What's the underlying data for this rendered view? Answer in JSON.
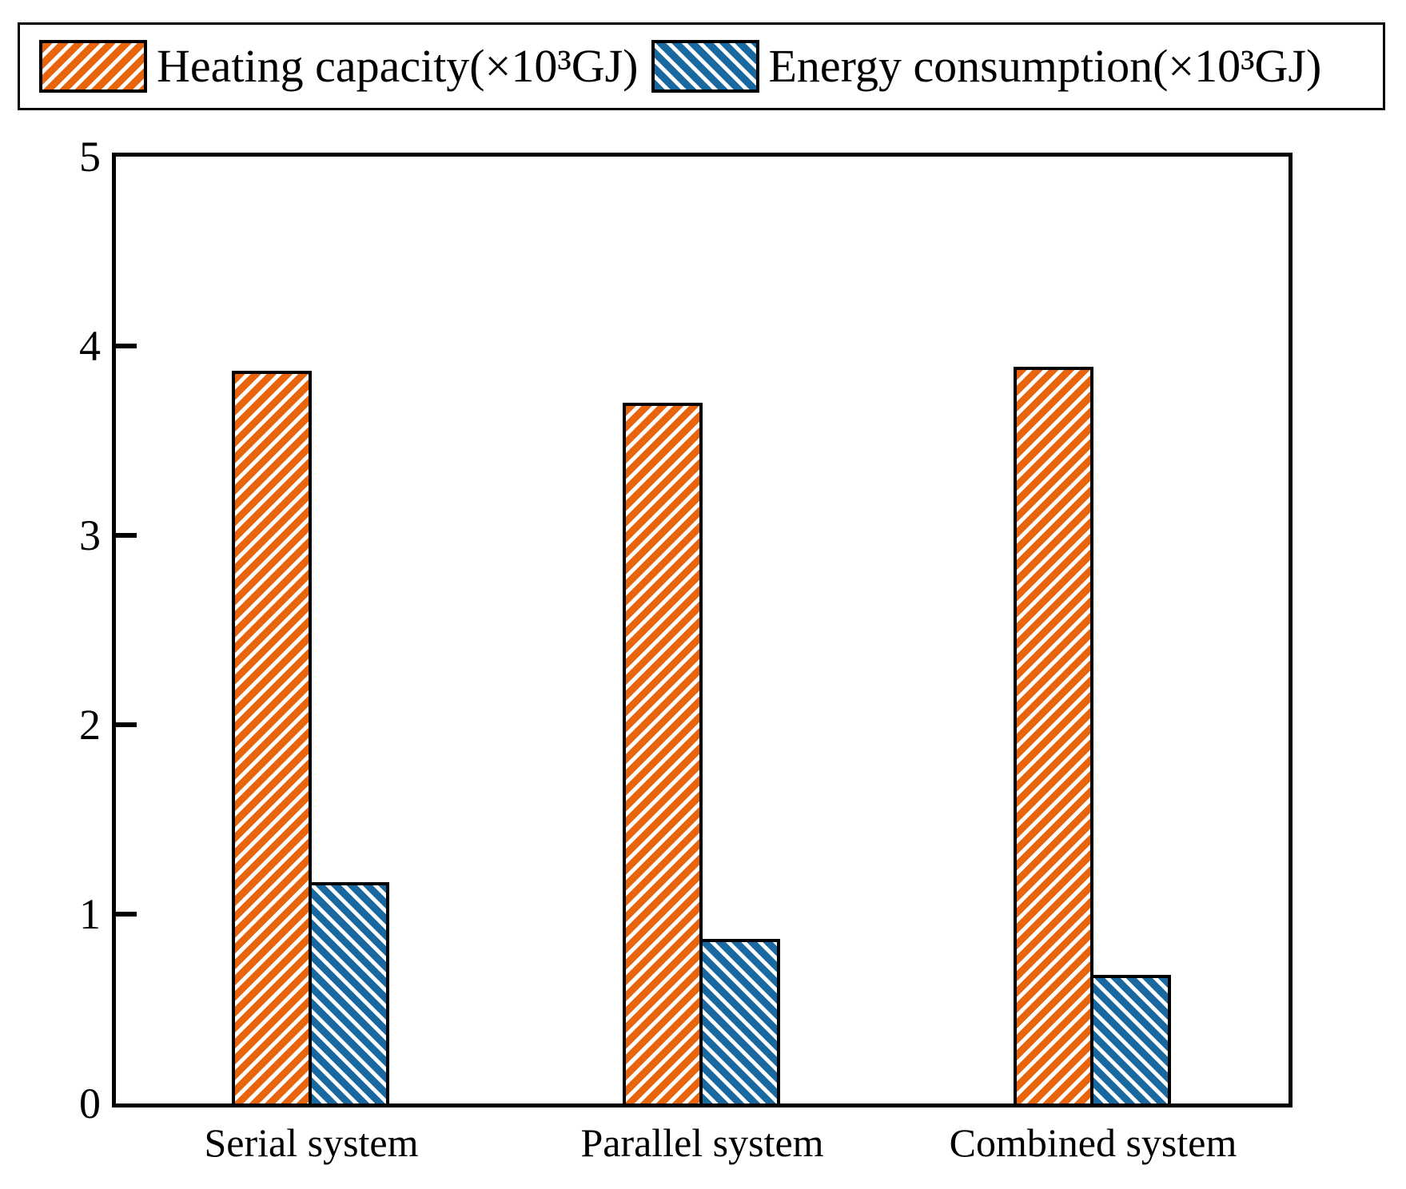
{
  "chart_data": {
    "type": "bar",
    "title": "",
    "categories": [
      "Serial system",
      "Parallel system",
      "Combined system"
    ],
    "series": [
      {
        "name": "Heating capacity(×10³GJ)",
        "values": [
          3.87,
          3.7,
          3.89
        ],
        "color": "#e8650e",
        "hatch": "forward-diagonal"
      },
      {
        "name": "Energy consumption(×10³GJ)",
        "values": [
          1.17,
          0.87,
          0.68
        ],
        "color": "#19689f",
        "hatch": "backward-diagonal"
      }
    ],
    "xlabel": "",
    "ylabel": "",
    "ylim": [
      0,
      5
    ],
    "yticks": [
      "0",
      "1",
      "2",
      "3",
      "4",
      "5"
    ],
    "grid": false,
    "legend_position": "top"
  },
  "legend": {
    "items": [
      {
        "label": "Heating capacity(×10³GJ)",
        "swatch": "orange-forward-hatch",
        "color": "#e8650e"
      },
      {
        "label": "Energy consumption(×10³GJ)",
        "swatch": "blue-backward-hatch",
        "color": "#19689f"
      }
    ]
  },
  "colors": {
    "heating_orange": "#e8650e",
    "energy_blue": "#19689f",
    "axis": "#000000",
    "background": "#ffffff"
  }
}
